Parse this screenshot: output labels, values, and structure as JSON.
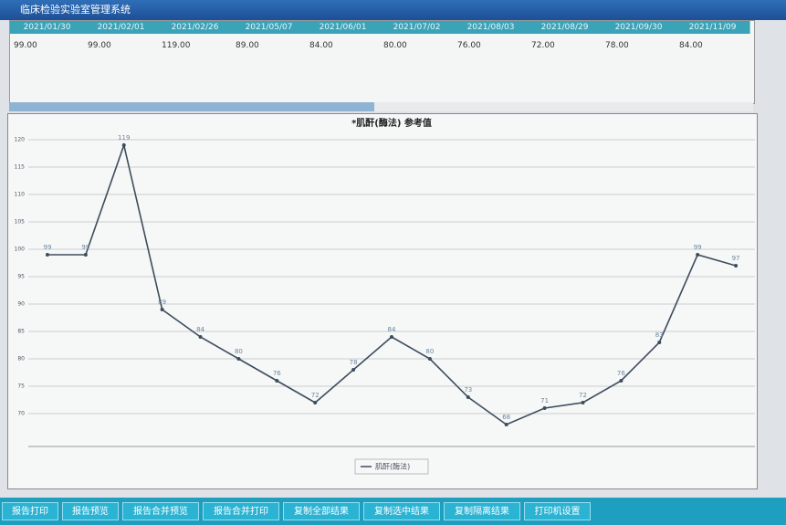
{
  "window": {
    "title": "临床检验实验室管理系统"
  },
  "table": {
    "headers": [
      "2021/01/30",
      "2021/02/01",
      "2021/02/26",
      "2021/05/07",
      "2021/06/01",
      "2021/07/02",
      "2021/08/03",
      "2021/08/29",
      "2021/09/30",
      "2021/11/09"
    ],
    "rows": [
      [
        "99.00",
        "99.00",
        "119.00",
        "89.00",
        "84.00",
        "80.00",
        "76.00",
        "72.00",
        "78.00",
        "84.00"
      ]
    ]
  },
  "chart_data": {
    "type": "line",
    "title": "*肌酐(酶法) 参考值",
    "categories": [
      null,
      null,
      null,
      null,
      null,
      null,
      null,
      null,
      null,
      null,
      null,
      null,
      null,
      null,
      null,
      null,
      null,
      null,
      null
    ],
    "series": [
      {
        "name": "肌酐(酶法)",
        "color": "#3d4d5c",
        "values": [
          99,
          99,
          119,
          89,
          84,
          80,
          76,
          72,
          78,
          84,
          80,
          73,
          68,
          71,
          72,
          76,
          83,
          99,
          97
        ]
      }
    ],
    "ylim": [
      64,
      124
    ],
    "yticks": [
      70,
      75,
      80,
      85,
      90,
      95,
      100,
      105,
      110,
      115,
      120
    ],
    "grid": true,
    "legend": "bottom"
  },
  "buttons": [
    "报告打印",
    "报告预览",
    "报告合并预览",
    "报告合并打印",
    "复制全部结果",
    "复制选中结果",
    "复制隔离结果",
    "打印机设置"
  ]
}
